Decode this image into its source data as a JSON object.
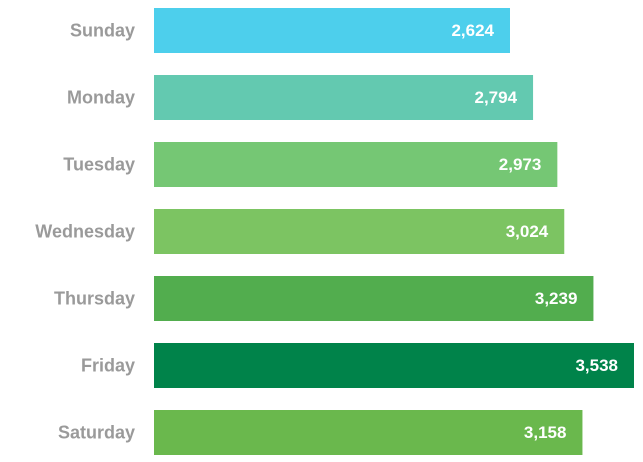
{
  "chart_data": {
    "type": "bar",
    "orientation": "horizontal",
    "categories": [
      "Sunday",
      "Monday",
      "Tuesday",
      "Wednesday",
      "Thursday",
      "Friday",
      "Saturday"
    ],
    "values": [
      2624,
      2794,
      2973,
      3024,
      3239,
      3538,
      3158
    ],
    "value_labels": [
      "2,624",
      "2,794",
      "2,973",
      "3,024",
      "3,239",
      "3,538",
      "3,158"
    ],
    "colors": [
      "#4dcfec",
      "#63c9b0",
      "#75c774",
      "#7cc462",
      "#52ad4e",
      "#00834a",
      "#6ab84d"
    ]
  }
}
